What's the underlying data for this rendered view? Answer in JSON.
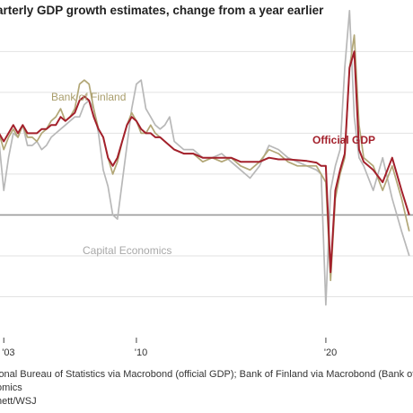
{
  "subtitle": "arterly GDP growth estimates, change from a year earlier",
  "footnotes": [
    "ional Bureau of Statistics via Macrobond (official GDP); Bank of Finland via Macrobond (Bank of Fi",
    "omics",
    "nett/WSJ"
  ],
  "chart_data": {
    "type": "line",
    "title": "arterly GDP growth estimates, change from a year earlier",
    "xlabel": "",
    "ylabel": "",
    "xlim": [
      2002.8,
      2024.6
    ],
    "ylim": [
      -15,
      23
    ],
    "x_ticks": [
      {
        "value": 2003,
        "label": "'03"
      },
      {
        "value": 2010,
        "label": "'10"
      },
      {
        "value": 2020,
        "label": "'20"
      }
    ],
    "gridlines_y": [
      -10,
      -5,
      5,
      10,
      15,
      20
    ],
    "zero_line": 0,
    "grid": true,
    "annotations": [
      {
        "text": "Bank of Finland",
        "series": "Bank of Finland",
        "color": "#a99d6b"
      },
      {
        "text": "Official GDP",
        "series": "Official GDP",
        "color": "#a3202b"
      },
      {
        "text": "Capital Economics",
        "series": "Capital Economics",
        "color": "#a8a8a8"
      }
    ],
    "series": [
      {
        "name": "Capital Economics",
        "color": "#b8b8b8",
        "x": [
          2002.75,
          2003.0,
          2003.25,
          2003.5,
          2003.75,
          2004.0,
          2004.25,
          2004.5,
          2004.75,
          2005.0,
          2005.25,
          2005.5,
          2005.75,
          2006.0,
          2006.25,
          2006.5,
          2006.75,
          2007.0,
          2007.25,
          2007.5,
          2007.75,
          2008.0,
          2008.25,
          2008.5,
          2008.75,
          2009.0,
          2009.25,
          2009.5,
          2009.75,
          2010.0,
          2010.25,
          2010.5,
          2010.75,
          2011.0,
          2011.25,
          2011.5,
          2011.75,
          2012.0,
          2012.5,
          2013.0,
          2013.5,
          2014.0,
          2014.5,
          2015.0,
          2015.5,
          2016.0,
          2016.5,
          2017.0,
          2017.5,
          2018.0,
          2018.5,
          2019.0,
          2019.5,
          2019.75,
          2020.0,
          2020.25,
          2020.5,
          2020.75,
          2021.0,
          2021.25,
          2021.5,
          2021.75,
          2022.0,
          2022.5,
          2023.0,
          2023.5,
          2024.0,
          2024.4
        ],
        "y": [
          9,
          3,
          7,
          10,
          9.5,
          11,
          8.5,
          8.5,
          9,
          8,
          8.5,
          9.5,
          10,
          10.5,
          11,
          11.5,
          12,
          12,
          13.5,
          14,
          13,
          10,
          5.5,
          3.5,
          0,
          -0.5,
          4,
          8.5,
          13,
          16,
          16.5,
          13,
          12,
          11,
          10.5,
          11,
          12,
          9,
          8,
          8,
          7,
          7,
          7.5,
          6.5,
          5.5,
          4.5,
          6,
          8.5,
          8,
          7,
          6.5,
          6,
          5.5,
          5,
          -11,
          3,
          6,
          8,
          18,
          25,
          12,
          7,
          6,
          3,
          7,
          2,
          -2,
          -5
        ]
      },
      {
        "name": "Bank of Finland",
        "color": "#b2a777",
        "x": [
          2002.75,
          2003.0,
          2003.25,
          2003.5,
          2003.75,
          2004.0,
          2004.25,
          2004.5,
          2004.75,
          2005.0,
          2005.25,
          2005.5,
          2005.75,
          2006.0,
          2006.25,
          2006.5,
          2006.75,
          2007.0,
          2007.25,
          2007.5,
          2007.75,
          2008.0,
          2008.25,
          2008.5,
          2008.75,
          2009.0,
          2009.25,
          2009.5,
          2009.75,
          2010.0,
          2010.25,
          2010.5,
          2010.75,
          2011.0,
          2011.25,
          2011.5,
          2012.0,
          2012.5,
          2013.0,
          2013.5,
          2014.0,
          2014.5,
          2015.0,
          2015.5,
          2016.0,
          2016.5,
          2017.0,
          2017.5,
          2018.0,
          2018.5,
          2019.0,
          2019.5,
          2019.75,
          2020.0,
          2020.25,
          2020.5,
          2020.75,
          2021.0,
          2021.25,
          2021.5,
          2021.75,
          2022.0,
          2022.5,
          2023.0,
          2023.5,
          2024.0,
          2024.4
        ],
        "y": [
          10,
          8,
          9.5,
          10.5,
          9.5,
          11,
          9.5,
          9.5,
          9,
          10,
          10.5,
          11.5,
          12,
          13,
          11.5,
          12,
          13,
          16,
          16.5,
          16,
          13,
          10.5,
          9.5,
          7,
          5,
          6.5,
          9,
          11,
          12.5,
          11.5,
          10,
          10,
          11,
          10,
          9.5,
          9,
          8,
          7.5,
          7.5,
          6.5,
          7,
          6.5,
          7,
          6,
          5.5,
          6.5,
          8,
          7.5,
          6.5,
          6,
          6,
          6,
          5,
          4,
          -8,
          2,
          5,
          7,
          18,
          22,
          11,
          7,
          6,
          3,
          6,
          2,
          -2
        ]
      },
      {
        "name": "Official GDP",
        "color": "#a3202b",
        "x": [
          2002.75,
          2003.0,
          2003.25,
          2003.5,
          2003.75,
          2004.0,
          2004.25,
          2004.5,
          2004.75,
          2005.0,
          2005.25,
          2005.5,
          2005.75,
          2006.0,
          2006.25,
          2006.5,
          2006.75,
          2007.0,
          2007.25,
          2007.5,
          2007.75,
          2008.0,
          2008.25,
          2008.5,
          2008.75,
          2009.0,
          2009.25,
          2009.5,
          2009.75,
          2010.0,
          2010.25,
          2010.5,
          2010.75,
          2011.0,
          2011.25,
          2011.5,
          2012.0,
          2012.5,
          2013.0,
          2013.5,
          2014.0,
          2014.5,
          2015.0,
          2015.5,
          2016.0,
          2016.5,
          2017.0,
          2017.5,
          2018.0,
          2018.5,
          2019.0,
          2019.5,
          2019.75,
          2020.0,
          2020.25,
          2020.5,
          2020.75,
          2021.0,
          2021.25,
          2021.5,
          2021.75,
          2022.0,
          2022.5,
          2023.0,
          2023.5,
          2024.0,
          2024.4
        ],
        "y": [
          10,
          9,
          10,
          11,
          10,
          11,
          10,
          10,
          10,
          10.5,
          10.5,
          11,
          11,
          12,
          11.5,
          12,
          12.5,
          14,
          14.5,
          14,
          12,
          10.5,
          9.5,
          7,
          6,
          7,
          9,
          11,
          12,
          11.5,
          10.5,
          10,
          10,
          9.5,
          9.5,
          9,
          8,
          7.5,
          7.5,
          7,
          7,
          7,
          7,
          6.5,
          6.5,
          6.5,
          7,
          6.8,
          6.8,
          6.7,
          6.6,
          6.4,
          6,
          6,
          -7,
          3,
          5.5,
          7.5,
          18,
          20,
          8,
          6.5,
          5.5,
          4,
          7,
          3,
          0
        ]
      }
    ]
  }
}
